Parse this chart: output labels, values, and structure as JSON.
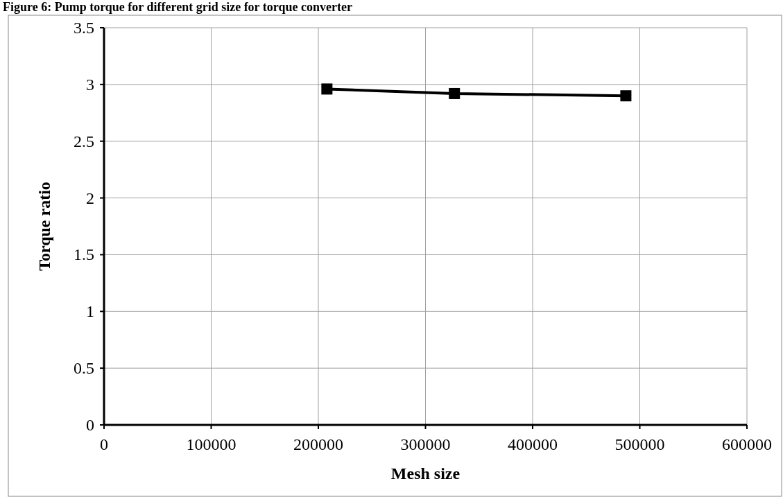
{
  "chart_data": {
    "type": "line",
    "title": "Figure 6: Pump torque for different grid size for torque converter",
    "xlabel": "Mesh size",
    "ylabel": "Torque ratio",
    "x": [
      208000,
      327000,
      487000
    ],
    "series": [
      {
        "color": "#000000",
        "values": [
          2.96,
          2.92,
          2.9
        ]
      }
    ],
    "xlim": [
      0,
      600000
    ],
    "xticks": [
      0,
      100000,
      200000,
      300000,
      400000,
      500000,
      600000
    ],
    "ylim": [
      0,
      3.5
    ],
    "yticks": [
      0,
      0.5,
      1,
      1.5,
      2,
      2.5,
      3,
      3.5
    ],
    "grid": true,
    "marker": "square",
    "line_style": "solid"
  }
}
